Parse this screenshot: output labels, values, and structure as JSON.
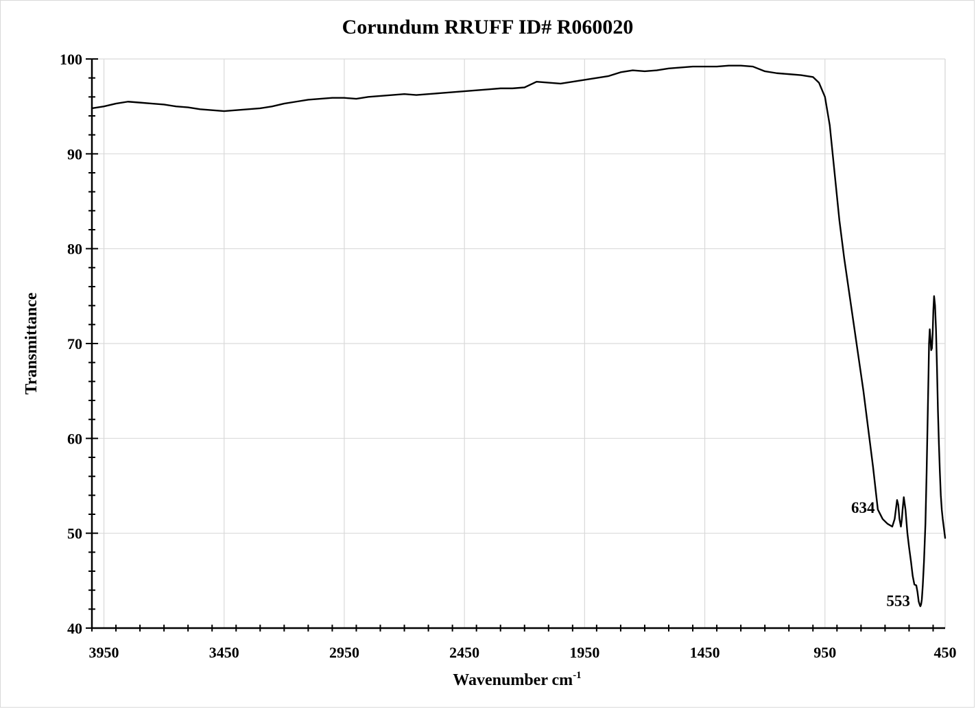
{
  "chart_data": {
    "type": "line",
    "title": "Corundum RRUFF ID# R060020",
    "xlabel": "Wavenumber cm",
    "xlabel_superscript": "-1",
    "ylabel": "Transmittance",
    "xlim": [
      4000,
      450
    ],
    "ylim": [
      40,
      100
    ],
    "x_ticks": [
      3950,
      3450,
      2950,
      2450,
      1950,
      1450,
      950,
      450
    ],
    "y_ticks": [
      40,
      50,
      60,
      70,
      80,
      90,
      100
    ],
    "grid": true,
    "line_color": "#000000",
    "grid_color": "#d9d9d9",
    "annotations": [
      {
        "text": "634",
        "x": 634,
        "y": 50.7
      },
      {
        "text": "553",
        "x": 553,
        "y": 42.3
      }
    ],
    "series": [
      {
        "x": [
          4000,
          3950,
          3900,
          3850,
          3800,
          3750,
          3700,
          3650,
          3600,
          3550,
          3500,
          3450,
          3400,
          3350,
          3300,
          3250,
          3200,
          3150,
          3100,
          3050,
          3000,
          2950,
          2900,
          2850,
          2800,
          2750,
          2700,
          2650,
          2600,
          2550,
          2500,
          2450,
          2400,
          2350,
          2300,
          2250,
          2200,
          2150,
          2100,
          2050,
          2000,
          1950,
          1900,
          1850,
          1800,
          1750,
          1700,
          1650,
          1600,
          1550,
          1500,
          1450,
          1400,
          1350,
          1300,
          1250,
          1200,
          1150,
          1100,
          1050,
          1000,
          975,
          950,
          930,
          910,
          890,
          870,
          850,
          830,
          810,
          790,
          770,
          750,
          730,
          710,
          690,
          670,
          660,
          650,
          645,
          640,
          634,
          630,
          627,
          622,
          615,
          607,
          600,
          592,
          585,
          578,
          570,
          565,
          560,
          555,
          553,
          550,
          547,
          543,
          538,
          532,
          527,
          522,
          519,
          517,
          514,
          511,
          508,
          505,
          502,
          499,
          496,
          492,
          488,
          484,
          480,
          476,
          472,
          468,
          464,
          460,
          455,
          450
        ],
        "y": [
          94.8,
          95.0,
          95.3,
          95.5,
          95.4,
          95.3,
          95.2,
          95.0,
          94.9,
          94.7,
          94.6,
          94.5,
          94.6,
          94.7,
          94.8,
          95.0,
          95.3,
          95.5,
          95.7,
          95.8,
          95.9,
          95.9,
          95.8,
          96.0,
          96.1,
          96.2,
          96.3,
          96.2,
          96.3,
          96.4,
          96.5,
          96.6,
          96.7,
          96.8,
          96.9,
          96.9,
          97.0,
          97.6,
          97.5,
          97.4,
          97.6,
          97.8,
          98.0,
          98.2,
          98.6,
          98.8,
          98.7,
          98.8,
          99.0,
          99.1,
          99.2,
          99.2,
          99.2,
          99.3,
          99.3,
          99.2,
          98.7,
          98.5,
          98.4,
          98.3,
          98.1,
          97.5,
          96.0,
          93.0,
          88.0,
          83.0,
          79.0,
          75.5,
          72.0,
          68.5,
          65.0,
          61.0,
          57.0,
          52.5,
          51.5,
          51.0,
          50.7,
          51.5,
          53.5,
          53.0,
          51.5,
          50.7,
          51.5,
          52.5,
          53.8,
          52.5,
          50.0,
          48.5,
          47.0,
          45.5,
          44.6,
          44.5,
          43.8,
          42.8,
          42.4,
          42.3,
          42.5,
          43.0,
          44.5,
          47.0,
          51.0,
          56.5,
          63.0,
          67.0,
          70.0,
          71.5,
          70.5,
          69.3,
          69.5,
          71.0,
          73.5,
          75.0,
          74.0,
          71.5,
          67.5,
          63.0,
          59.5,
          56.5,
          54.0,
          52.5,
          51.5,
          50.5,
          49.5
        ]
      }
    ]
  }
}
